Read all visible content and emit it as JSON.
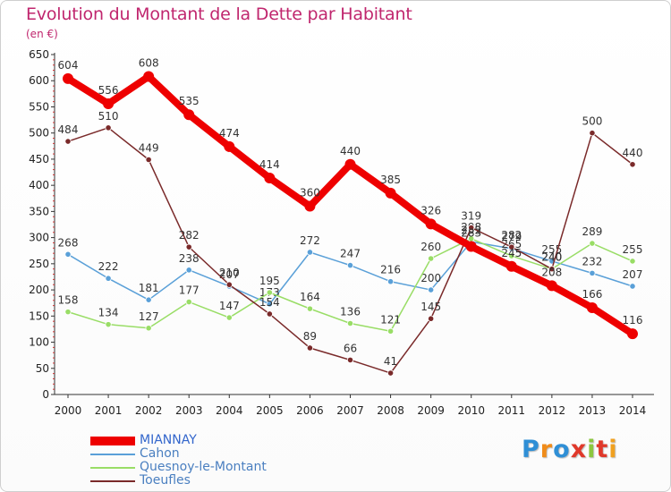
{
  "title": "Evolution du Montant de la Dette par Habitant",
  "unit": "(en €)",
  "brand": {
    "text": "Proxiti",
    "letter_colors": [
      "#2f8fd6",
      "#f08c1a",
      "#2f8fd6",
      "#e0392b",
      "#8cc63f",
      "#e0392b",
      "#f0a020"
    ]
  },
  "chart_data": {
    "type": "line",
    "title": "Evolution du Montant de la Dette par Habitant",
    "ylabel": "(en €)",
    "xlabel": "",
    "x": [
      "2000",
      "2001",
      "2002",
      "2003",
      "2004",
      "2005",
      "2006",
      "2007",
      "2008",
      "2009",
      "2010",
      "2011",
      "2012",
      "2013",
      "2014"
    ],
    "ylim": [
      0,
      650
    ],
    "yticks": [
      0,
      50,
      100,
      150,
      200,
      250,
      300,
      350,
      400,
      450,
      500,
      550,
      600,
      650
    ],
    "grid": false,
    "legend_position": "bottom-left",
    "series": [
      {
        "name": "MIANNAY",
        "color": "#ee0000",
        "emphasis": true,
        "values": [
          604,
          556,
          608,
          535,
          474,
          414,
          360,
          440,
          385,
          326,
          283,
          245,
          208,
          166,
          116
        ]
      },
      {
        "name": "Cahon",
        "color": "#5aa0d8",
        "emphasis": false,
        "values": [
          268,
          222,
          181,
          238,
          207,
          173,
          272,
          247,
          216,
          200,
          292,
          279,
          255,
          232,
          207
        ]
      },
      {
        "name": "Quesnoy-le-Montant",
        "color": "#99dd66",
        "emphasis": false,
        "values": [
          158,
          134,
          127,
          177,
          147,
          195,
          164,
          136,
          121,
          260,
          298,
          265,
          240,
          289,
          255
        ]
      },
      {
        "name": "Toeufles",
        "color": "#7a2a2a",
        "emphasis": false,
        "values": [
          484,
          510,
          449,
          282,
          210,
          154,
          89,
          66,
          41,
          145,
          319,
          282,
          240,
          500,
          440
        ]
      }
    ]
  }
}
